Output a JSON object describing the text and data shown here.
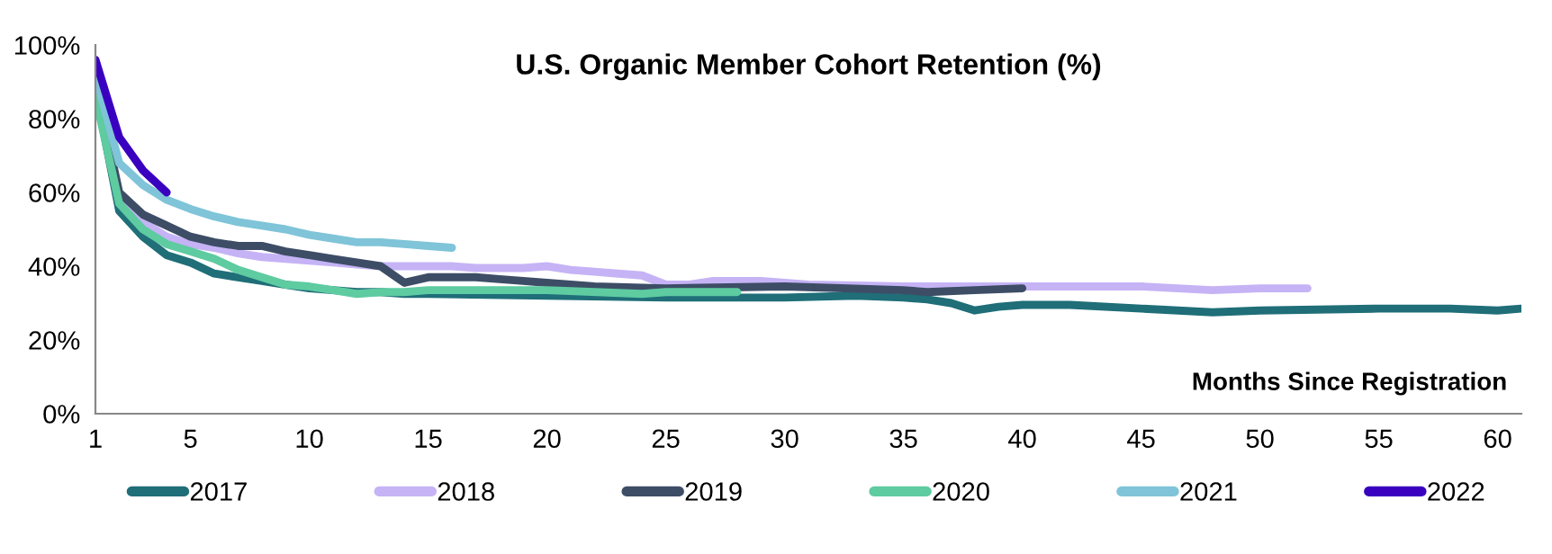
{
  "chart_data": {
    "type": "line",
    "title": "U.S. Organic Member Cohort Retention (%)",
    "xlabel": "Months Since Registration",
    "xlim": [
      1,
      61
    ],
    "xticks": [
      1,
      5,
      10,
      15,
      20,
      25,
      30,
      35,
      40,
      45,
      50,
      55,
      60
    ],
    "ylim": [
      0,
      100
    ],
    "yticks": [
      {
        "value": 0,
        "label": "0%"
      },
      {
        "value": 20,
        "label": "20%"
      },
      {
        "value": 40,
        "label": "40%"
      },
      {
        "value": 60,
        "label": "60%"
      },
      {
        "value": 80,
        "label": "80%"
      },
      {
        "value": 100,
        "label": "100%"
      }
    ],
    "grid": false,
    "legend": "bottom",
    "marker": "none",
    "line_style": "solid",
    "series": [
      {
        "name": "2017",
        "color": "#1f6e78",
        "x": [
          1,
          2,
          3,
          4,
          5,
          6,
          7,
          8,
          9,
          10,
          11,
          12,
          13,
          14,
          15,
          20,
          25,
          30,
          33,
          35,
          36,
          37,
          38,
          39,
          40,
          42,
          45,
          48,
          50,
          55,
          58,
          60,
          61
        ],
        "values": [
          88,
          55,
          48,
          43,
          41,
          38,
          37,
          36,
          35,
          34,
          33.5,
          33,
          33,
          32.5,
          32.5,
          32,
          31.5,
          31.5,
          32,
          31.5,
          31,
          30,
          28,
          29,
          29.5,
          29.5,
          28.5,
          27.5,
          28,
          28.5,
          28.5,
          28,
          28.5
        ]
      },
      {
        "name": "2018",
        "color": "#c5b3f5",
        "x": [
          2,
          3,
          4,
          5,
          6,
          7,
          8,
          9,
          10,
          11,
          12,
          13,
          14,
          15,
          16,
          17,
          18,
          19,
          20,
          21,
          22,
          23,
          24,
          25,
          26,
          27,
          28,
          29,
          30,
          31,
          35,
          40,
          45,
          48,
          50,
          52
        ],
        "values": [
          58,
          52,
          48,
          46,
          45,
          43.5,
          42.5,
          42,
          41.5,
          41,
          40.5,
          40,
          40,
          40,
          40,
          39.5,
          39.5,
          39.5,
          40,
          39,
          38.5,
          38,
          37.5,
          35,
          35,
          36,
          36,
          36,
          35.5,
          35,
          34.5,
          34.5,
          34.5,
          33.5,
          34,
          34
        ]
      },
      {
        "name": "2019",
        "color": "#3d4d66",
        "x": [
          1,
          2,
          3,
          4,
          5,
          6,
          7,
          8,
          9,
          10,
          11,
          12,
          13,
          14,
          15,
          16,
          17,
          18,
          19,
          20,
          22,
          25,
          30,
          35,
          36,
          38,
          40
        ],
        "values": [
          90,
          60,
          54,
          51,
          48,
          46.5,
          45.5,
          45.5,
          44,
          43,
          42,
          41,
          40,
          35.5,
          37,
          37,
          37,
          36.5,
          36,
          35.5,
          34.5,
          34,
          34.5,
          33.5,
          33,
          33.5,
          34
        ]
      },
      {
        "name": "2020",
        "color": "#5ecba1",
        "x": [
          1,
          2,
          3,
          4,
          5,
          6,
          7,
          8,
          9,
          10,
          11,
          12,
          13,
          14,
          15,
          20,
          24,
          25,
          28
        ],
        "values": [
          86,
          57,
          50,
          46,
          44,
          42,
          39,
          37,
          35,
          34.5,
          33.5,
          32.5,
          33,
          33,
          33.5,
          33.5,
          32.5,
          33,
          33
        ]
      },
      {
        "name": "2021",
        "color": "#7fc4d8",
        "x": [
          1,
          2,
          3,
          4,
          5,
          6,
          7,
          8,
          9,
          10,
          11,
          12,
          13,
          14,
          15,
          16
        ],
        "values": [
          92,
          68,
          62,
          58,
          55.5,
          53.5,
          52,
          51,
          50,
          48.5,
          47.5,
          46.5,
          46.5,
          46,
          45.5,
          45
        ]
      },
      {
        "name": "2022",
        "color": "#3a00c0",
        "x": [
          1,
          2,
          3,
          4
        ],
        "values": [
          96,
          75,
          66,
          60
        ]
      }
    ]
  }
}
